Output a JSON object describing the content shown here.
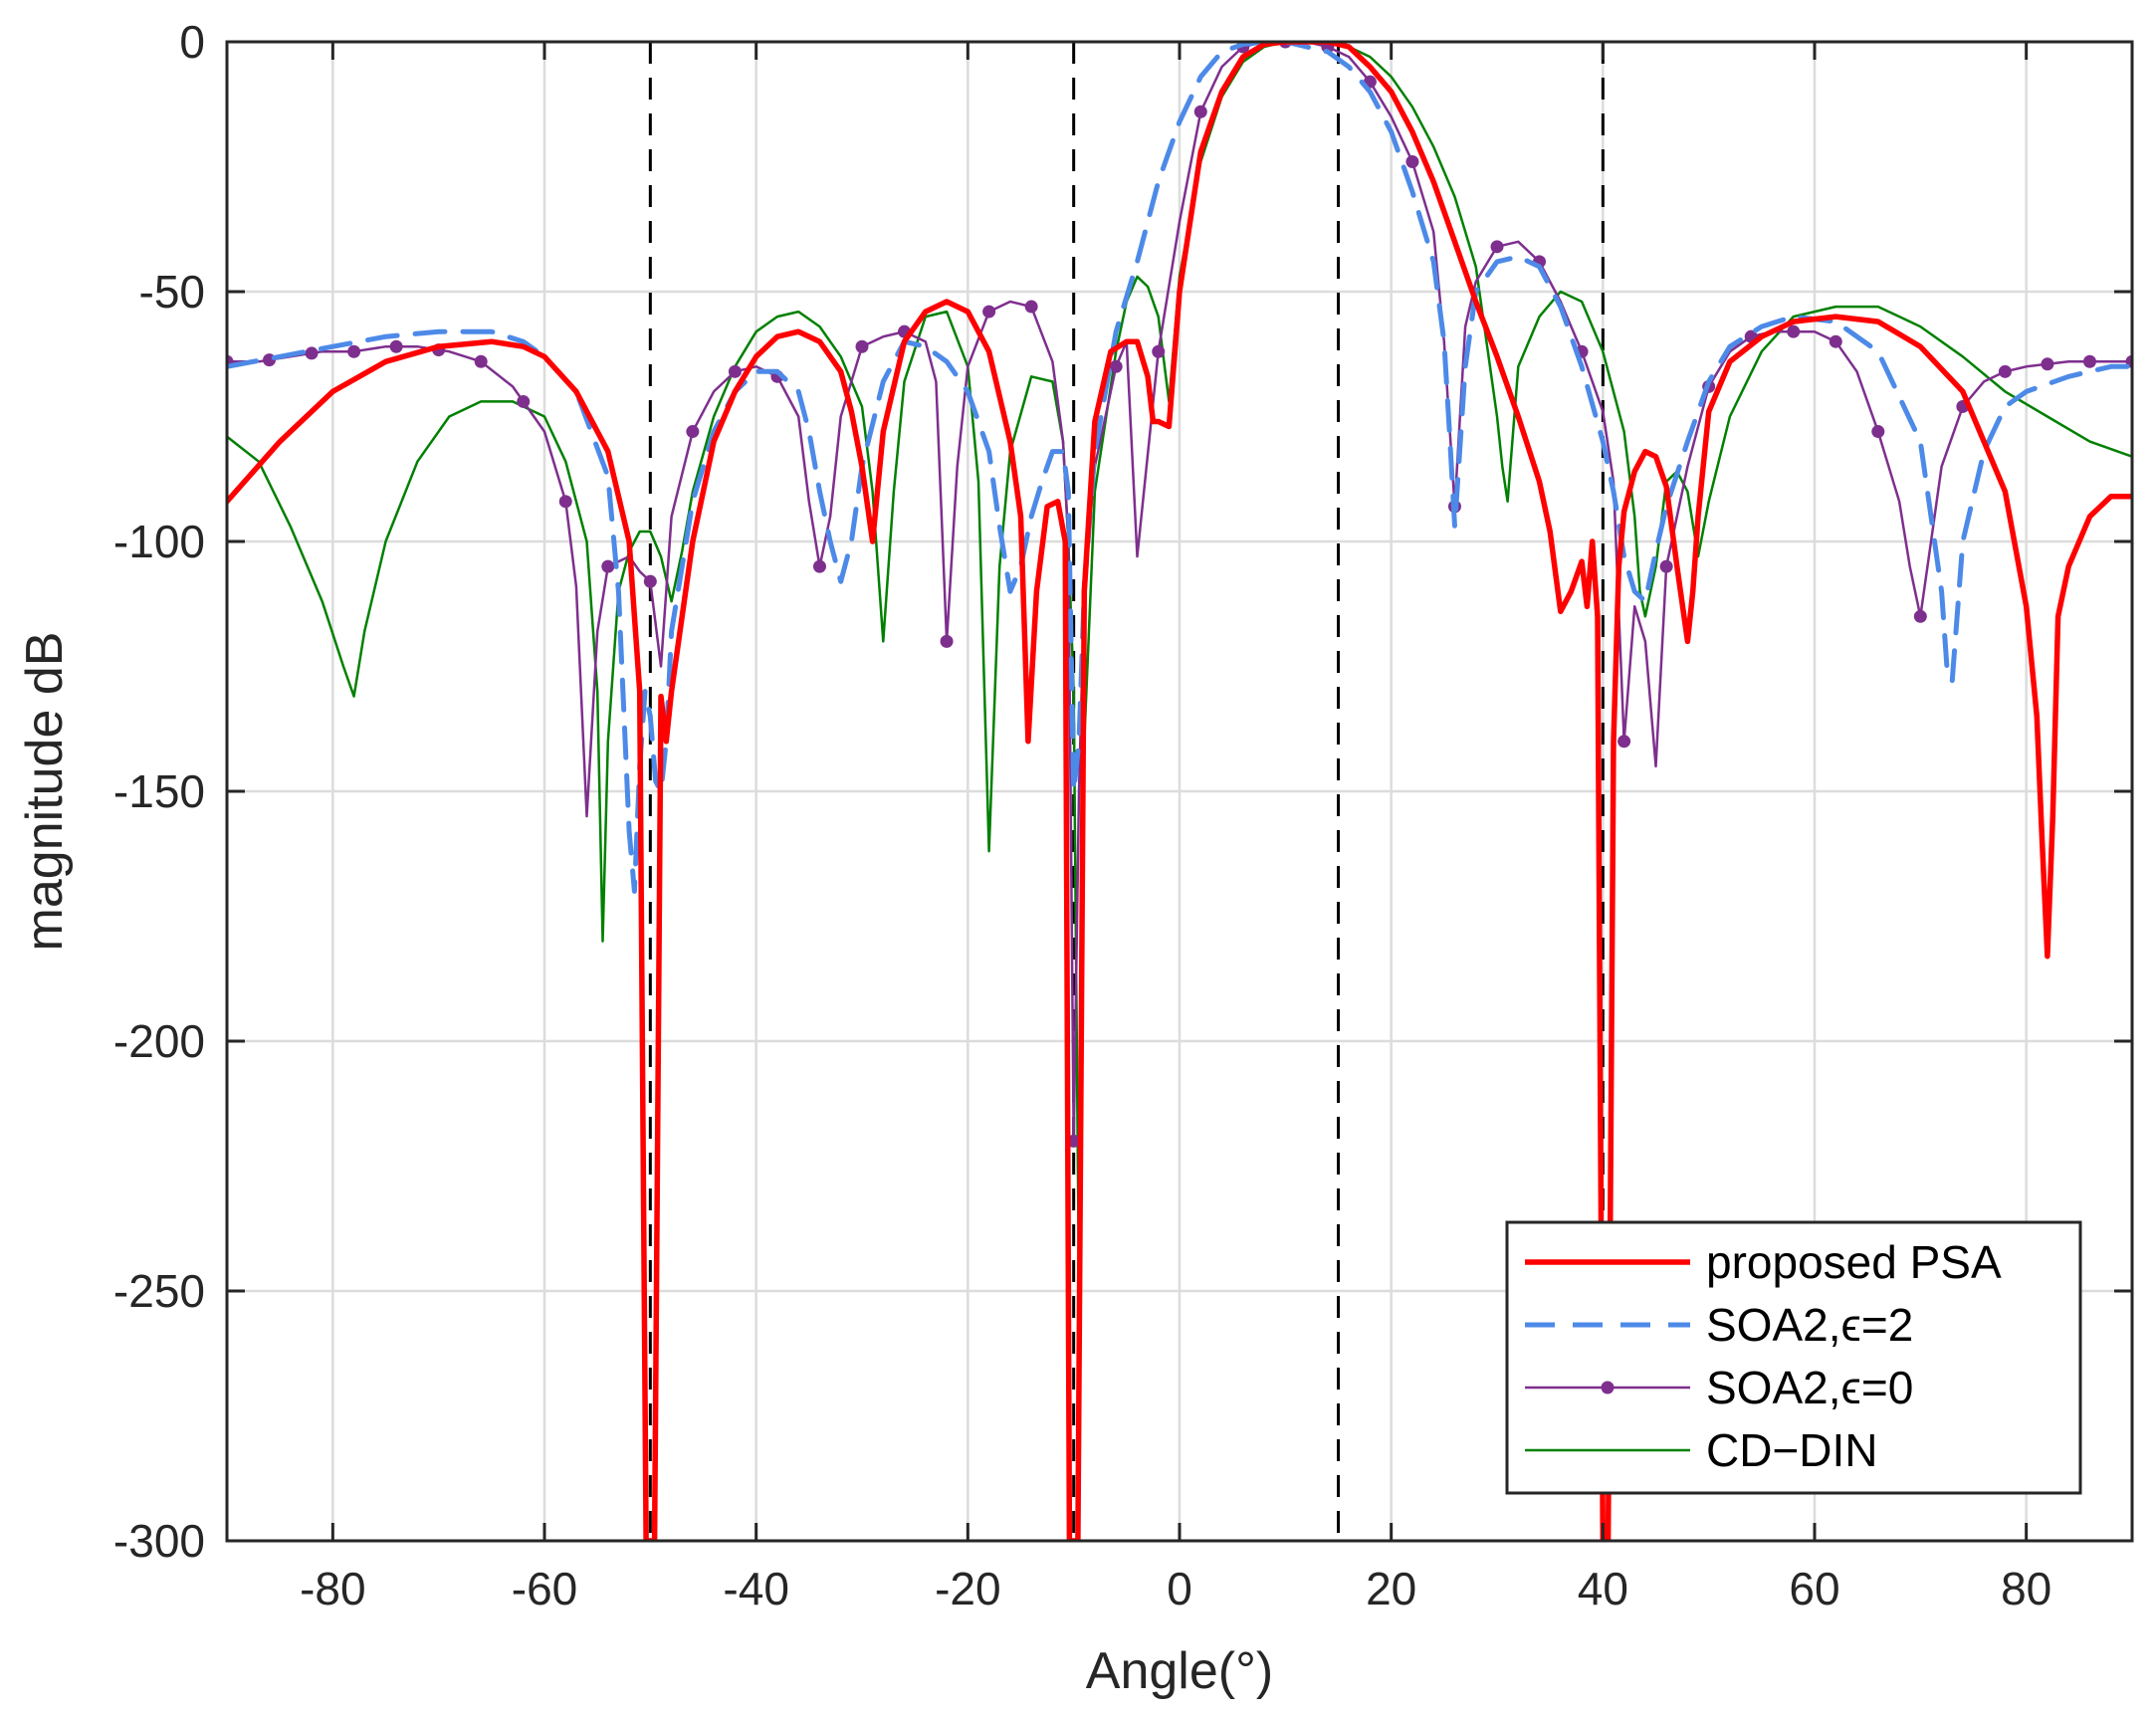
{
  "chart_data": {
    "type": "line",
    "title": "",
    "xlabel": "Angle(°)",
    "ylabel": "magnitude dB",
    "xlim": [
      -90,
      90
    ],
    "ylim": [
      -300,
      0
    ],
    "xticks": [
      -80,
      -60,
      -40,
      -20,
      0,
      20,
      40,
      60,
      80
    ],
    "yticks": [
      0,
      -50,
      -100,
      -150,
      -200,
      -250,
      -300
    ],
    "grid": true,
    "legend_position": "bottom-right",
    "null_lines_x": [
      -50,
      -10,
      15,
      40
    ],
    "series": [
      {
        "name": "proposed PSA",
        "color": "#ff0000",
        "style": "solid-thick",
        "x": [
          -90,
          -85,
          -80,
          -75,
          -70,
          -65,
          -62,
          -60,
          -57,
          -54,
          -52,
          -51,
          -50.4,
          -50,
          -49.6,
          -49,
          -48.5,
          -48,
          -46,
          -44,
          -42,
          -40,
          -38,
          -36,
          -34,
          -32,
          -31,
          -30,
          -29,
          -28,
          -26,
          -24,
          -22,
          -20,
          -18,
          -16,
          -15,
          -14.3,
          -13.5,
          -12.5,
          -11.5,
          -10.8,
          -10.4,
          -10,
          -9.6,
          -9,
          -8,
          -6.5,
          -5,
          -4,
          -3,
          -2.5,
          -2,
          -1,
          0,
          2,
          4,
          6,
          8,
          10,
          12,
          14,
          16,
          18,
          20,
          22,
          24,
          26,
          28,
          30,
          32,
          34,
          35,
          36,
          37,
          38,
          38.5,
          39,
          39.5,
          40,
          40.5,
          41,
          41.5,
          42,
          43,
          44,
          45,
          46,
          47,
          48,
          48.5,
          49,
          50,
          52,
          55,
          58,
          62,
          66,
          70,
          74,
          78,
          80,
          81,
          81.5,
          82,
          82.5,
          83,
          84,
          86,
          88,
          90
        ],
        "y": [
          -92,
          -80,
          -70,
          -64,
          -61,
          -60,
          -61,
          -63,
          -70,
          -82,
          -100,
          -130,
          -300,
          -300,
          -300,
          -131,
          -140,
          -130,
          -100,
          -80,
          -70,
          -63,
          -59,
          -58,
          -60,
          -66,
          -74,
          -85,
          -100,
          -78,
          -60,
          -54,
          -52,
          -54,
          -62,
          -80,
          -95,
          -140,
          -110,
          -93,
          -92,
          -100,
          -300,
          -300,
          -300,
          -110,
          -76,
          -62,
          -60,
          -60,
          -67,
          -76,
          -76,
          -77,
          -50,
          -22,
          -10,
          -3,
          -0.5,
          0,
          0,
          0,
          -1,
          -5,
          -10,
          -18,
          -28,
          -40,
          -52,
          -63,
          -75,
          -88,
          -98,
          -114,
          -110,
          -104,
          -113,
          -100,
          -115,
          -300,
          -300,
          -140,
          -105,
          -94,
          -86,
          -82,
          -83,
          -89,
          -105,
          -120,
          -110,
          -95,
          -74,
          -64,
          -59,
          -56,
          -55,
          -56,
          -61,
          -70,
          -90,
          -113,
          -135,
          -160,
          -183,
          -155,
          -115,
          -105,
          -95,
          -91,
          -91
        ]
      },
      {
        "name": "SOA2,ϵ=2",
        "color": "#4d8ae8",
        "style": "dashed",
        "x": [
          -90,
          -85,
          -80,
          -75,
          -70,
          -65,
          -62,
          -60,
          -57,
          -54,
          -53,
          -52,
          -51.5,
          -51,
          -50.5,
          -50,
          -49.5,
          -49,
          -48.5,
          -48,
          -46,
          -44,
          -42,
          -40,
          -38,
          -36,
          -35,
          -34,
          -33,
          -32,
          -31,
          -30,
          -28,
          -26,
          -24,
          -22,
          -20,
          -18,
          -17,
          -16,
          -15,
          -14,
          -13,
          -12,
          -11,
          -10.5,
          -10,
          -9.5,
          -9,
          -8,
          -6,
          -4,
          -2,
          0,
          2,
          4,
          6,
          8,
          10,
          12,
          14,
          16,
          18,
          20,
          22,
          24,
          25,
          25.5,
          26,
          27,
          28,
          30,
          32,
          34,
          36,
          38,
          40,
          41,
          42,
          43,
          44,
          45,
          46,
          48,
          50,
          52,
          55,
          58,
          62,
          66,
          70,
          71,
          72,
          72.5,
          73,
          74,
          76,
          78,
          80,
          84,
          88,
          90
        ],
        "y": [
          -65,
          -63,
          -61,
          -59,
          -58,
          -58,
          -60,
          -63,
          -70,
          -87,
          -110,
          -158,
          -170,
          -145,
          -130,
          -135,
          -148,
          -150,
          -140,
          -118,
          -92,
          -78,
          -70,
          -66,
          -66,
          -70,
          -78,
          -90,
          -100,
          -108,
          -100,
          -85,
          -68,
          -60,
          -61,
          -64,
          -70,
          -82,
          -97,
          -110,
          -105,
          -95,
          -88,
          -82,
          -82,
          -90,
          -150,
          -140,
          -110,
          -82,
          -58,
          -44,
          -28,
          -16,
          -7,
          -2,
          -0.5,
          0,
          0,
          -1,
          -2,
          -5,
          -10,
          -18,
          -30,
          -44,
          -60,
          -78,
          -97,
          -65,
          -50,
          -44,
          -43,
          -45,
          -53,
          -65,
          -80,
          -90,
          -103,
          -110,
          -112,
          -102,
          -93,
          -80,
          -68,
          -61,
          -57,
          -55,
          -56,
          -62,
          -80,
          -95,
          -110,
          -125,
          -128,
          -100,
          -82,
          -73,
          -70,
          -67,
          -65,
          -65
        ]
      },
      {
        "name": "SOA2,ϵ=0",
        "color": "#7e2f8e",
        "style": "solid-markers",
        "x": [
          -90,
          -87,
          -84,
          -81,
          -78,
          -75,
          -72,
          -69,
          -66,
          -63,
          -60,
          -58,
          -57,
          -56,
          -55,
          -54,
          -52,
          -51,
          -50,
          -49,
          -48,
          -46,
          -44,
          -42,
          -40,
          -38,
          -36,
          -35,
          -34,
          -33,
          -32,
          -30,
          -28,
          -26,
          -24,
          -23,
          -22,
          -21,
          -20,
          -18,
          -16,
          -14,
          -12,
          -11,
          -10.5,
          -10,
          -9.5,
          -9,
          -8,
          -6,
          -5,
          -4,
          -2,
          0,
          2,
          4,
          6,
          8,
          10,
          12,
          14,
          16,
          18,
          20,
          22,
          24,
          25,
          26,
          27,
          28,
          30,
          32,
          34,
          36,
          38,
          40,
          41,
          42,
          43,
          44,
          45,
          46,
          48,
          50,
          52,
          54,
          56,
          58,
          60,
          62,
          64,
          66,
          68,
          69,
          70,
          71,
          72,
          74,
          76,
          78,
          80,
          84,
          88,
          90
        ],
        "y": [
          -64,
          -64,
          -63,
          -62,
          -62,
          -61,
          -61,
          -62,
          -64,
          -69,
          -78,
          -92,
          -109,
          -155,
          -118,
          -105,
          -103,
          -106,
          -108,
          -125,
          -95,
          -78,
          -70,
          -66,
          -65,
          -67,
          -75,
          -92,
          -105,
          -95,
          -75,
          -61,
          -59,
          -58,
          -60,
          -68,
          -120,
          -85,
          -65,
          -54,
          -52,
          -53,
          -64,
          -80,
          -100,
          -220,
          -150,
          -110,
          -85,
          -65,
          -60,
          -103,
          -62,
          -36,
          -14,
          -5,
          -1,
          0,
          0,
          0,
          -1,
          -3,
          -8,
          -15,
          -24,
          -38,
          -60,
          -93,
          -57,
          -48,
          -41,
          -40,
          -44,
          -52,
          -62,
          -74,
          -88,
          -140,
          -113,
          -120,
          -145,
          -105,
          -85,
          -69,
          -62,
          -59,
          -58,
          -58,
          -58,
          -60,
          -66,
          -78,
          -92,
          -105,
          -115,
          -100,
          -85,
          -73,
          -68,
          -66,
          -65,
          -64,
          -64,
          -64
        ]
      },
      {
        "name": "CD−DIN",
        "color": "#008000",
        "style": "solid-thin",
        "x": [
          -90,
          -87,
          -84,
          -81,
          -79,
          -78,
          -77,
          -75,
          -72,
          -69,
          -66,
          -63,
          -60,
          -58,
          -56,
          -55,
          -54.5,
          -54,
          -53,
          -52,
          -51,
          -50,
          -49,
          -48,
          -47,
          -46,
          -44,
          -42,
          -40,
          -38,
          -36,
          -34,
          -32,
          -30,
          -29,
          -28,
          -27,
          -26,
          -24,
          -22,
          -20,
          -19,
          -18,
          -17,
          -16,
          -14,
          -12,
          -11,
          -10.5,
          -10,
          -9.5,
          -9,
          -8,
          -6,
          -5,
          -4,
          -3,
          -2,
          -1,
          0,
          2,
          4,
          6,
          8,
          10,
          12,
          14,
          16,
          18,
          20,
          22,
          24,
          26,
          28,
          29,
          30,
          30.5,
          31,
          32,
          34,
          36,
          38,
          40,
          42,
          43,
          43.5,
          44,
          45,
          46,
          47,
          48,
          49,
          50,
          52,
          55,
          58,
          62,
          66,
          70,
          74,
          78,
          82,
          86,
          90
        ],
        "y": [
          -79,
          -84,
          -97,
          -112,
          -125,
          -131,
          -118,
          -100,
          -84,
          -75,
          -72,
          -72,
          -75,
          -84,
          -100,
          -130,
          -180,
          -140,
          -110,
          -102,
          -98,
          -98,
          -103,
          -112,
          -102,
          -90,
          -75,
          -65,
          -58,
          -55,
          -54,
          -57,
          -63,
          -73,
          -90,
          -120,
          -90,
          -68,
          -55,
          -54,
          -65,
          -88,
          -162,
          -105,
          -82,
          -67,
          -68,
          -80,
          -100,
          -130,
          -250,
          -140,
          -90,
          -62,
          -52,
          -47,
          -49,
          -55,
          -72,
          -47,
          -24,
          -11,
          -4,
          -1,
          0,
          0,
          0,
          -1,
          -3,
          -7,
          -13,
          -21,
          -31,
          -45,
          -60,
          -75,
          -85,
          -92,
          -65,
          -55,
          -50,
          -52,
          -62,
          -78,
          -95,
          -110,
          -115,
          -105,
          -88,
          -86,
          -90,
          -103,
          -92,
          -75,
          -62,
          -55,
          -53,
          -53,
          -57,
          -63,
          -70,
          -75,
          -80,
          -83
        ]
      }
    ]
  }
}
